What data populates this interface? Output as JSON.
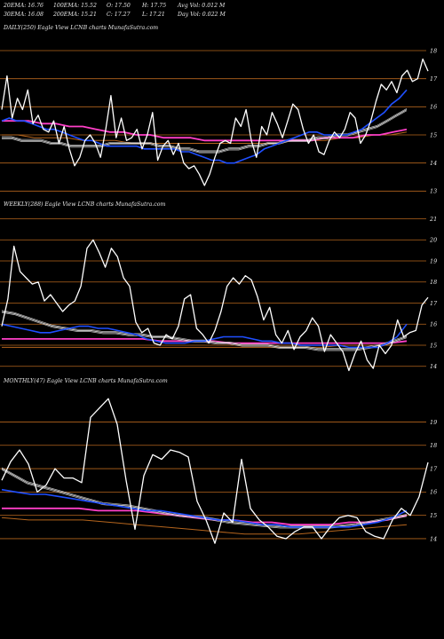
{
  "header": {
    "ema20": "20EMA: 16.76",
    "ema100": "100EMA: 15.52",
    "open": "O: 17.50",
    "high": "H: 17.75",
    "avg_vol": "Avg Vol: 0.012  M",
    "ema30": "30EMA: 16.08",
    "ema200": "200EMA: 15.21",
    "close": "C: 17.27",
    "low": "L: 17.21",
    "day_vol": "Day Vol: 0.022  M"
  },
  "colors": {
    "price": "#ffffff",
    "ema_fast": "#1f4fff",
    "ema_pink": "#ff3fc8",
    "ema_brown": "#b5651d",
    "grid": "#b5651d",
    "ma_grey": "#bfbfbf"
  },
  "chart_data": [
    {
      "type": "line",
      "title": "DAILY(250) Eagle  View  LCNB charts MunafaSutra.com",
      "yticks": [
        13,
        14,
        15,
        16,
        17,
        18
      ],
      "ylim": [
        12.6,
        18.6
      ],
      "series": [
        {
          "key": "price",
          "values": [
            15.9,
            17.1,
            15.6,
            16.3,
            15.9,
            16.6,
            15.4,
            15.7,
            15.2,
            15.1,
            15.5,
            14.7,
            15.3,
            14.5,
            13.9,
            14.2,
            14.8,
            15.0,
            14.7,
            14.2,
            15.2,
            16.4,
            14.9,
            15.6,
            14.8,
            14.9,
            15.2,
            14.5,
            15.0,
            15.8,
            14.1,
            14.6,
            14.8,
            14.3,
            14.7,
            14.0,
            13.8,
            13.9,
            13.6,
            13.2,
            13.6,
            14.2,
            14.7,
            14.8,
            14.7,
            15.6,
            15.3,
            15.9,
            14.8,
            14.2,
            15.3,
            15.0,
            15.8,
            15.4,
            14.9,
            15.5,
            16.1,
            15.9,
            15.2,
            14.7,
            15.0,
            14.4,
            14.3,
            14.8,
            15.1,
            14.9,
            15.2,
            15.8,
            15.6,
            14.7,
            15.0,
            15.5,
            16.2,
            16.8,
            16.6,
            16.9,
            16.5,
            17.1,
            17.3,
            16.9,
            17.0,
            17.7,
            17.27
          ]
        },
        {
          "key": "ema_fast",
          "values": [
            15.5,
            15.6,
            15.5,
            15.5,
            15.4,
            15.3,
            15.2,
            15.2,
            15.1,
            15.0,
            14.9,
            14.8,
            14.8,
            14.7,
            14.6,
            14.6,
            14.6,
            14.6,
            14.6,
            14.5,
            14.5,
            14.5,
            14.5,
            14.5,
            14.4,
            14.4,
            14.3,
            14.2,
            14.1,
            14.1,
            14.0,
            14.0,
            14.1,
            14.2,
            14.3,
            14.5,
            14.6,
            14.7,
            14.8,
            14.9,
            15.0,
            15.1,
            15.1,
            15.0,
            15.0,
            15.0,
            15.0,
            15.1,
            15.2,
            15.4,
            15.6,
            15.8,
            16.1,
            16.3,
            16.6
          ]
        },
        {
          "key": "ma_grey",
          "values": [
            14.9,
            14.9,
            14.8,
            14.8,
            14.8,
            14.7,
            14.7,
            14.6,
            14.6,
            14.6,
            14.6,
            14.7,
            14.7,
            14.7,
            14.7,
            14.7,
            14.6,
            14.6,
            14.5,
            14.5,
            14.4,
            14.4,
            14.4,
            14.5,
            14.5,
            14.6,
            14.6,
            14.7,
            14.7,
            14.8,
            14.8,
            14.8,
            14.9,
            14.9,
            15.0,
            15.0,
            15.1,
            15.2,
            15.3,
            15.5,
            15.7,
            15.9
          ]
        },
        {
          "key": "ema_pink",
          "values": [
            15.5,
            15.5,
            15.5,
            15.4,
            15.4,
            15.3,
            15.3,
            15.2,
            15.1,
            15.1,
            15.0,
            15.0,
            14.9,
            14.9,
            14.9,
            14.8,
            14.8,
            14.8,
            14.8,
            14.8,
            14.8,
            14.8,
            14.8,
            14.8,
            14.9,
            14.9,
            14.9,
            15.0,
            15.0,
            15.1,
            15.2
          ]
        },
        {
          "key": "ema_brown",
          "values": [
            15.0,
            15.0,
            14.9,
            14.9,
            14.9,
            14.8,
            14.8,
            14.8,
            14.7,
            14.7,
            14.7,
            14.7,
            14.7,
            14.7,
            14.7,
            14.7,
            14.7,
            14.7,
            14.8,
            14.8,
            14.8,
            14.9,
            14.9,
            15.0,
            15.0,
            15.1
          ]
        }
      ]
    },
    {
      "type": "line",
      "title": "WEEKLY(288) Eagle  View  LCNB charts MunafaSutra.com",
      "yticks": [
        14,
        15,
        16,
        17,
        18,
        19,
        20,
        21
      ],
      "ylim": [
        13.4,
        21.4
      ],
      "series": [
        {
          "key": "price",
          "values": [
            15.9,
            17.2,
            19.7,
            18.5,
            18.2,
            17.9,
            18.0,
            17.1,
            17.4,
            17.0,
            16.6,
            16.9,
            17.1,
            17.8,
            19.6,
            20.0,
            19.4,
            18.7,
            19.6,
            19.2,
            18.2,
            17.8,
            16.1,
            15.6,
            15.8,
            15.1,
            15.0,
            15.5,
            15.3,
            15.9,
            17.2,
            17.4,
            15.8,
            15.5,
            15.1,
            15.7,
            16.6,
            17.8,
            18.2,
            17.9,
            18.3,
            18.1,
            17.3,
            16.2,
            16.8,
            15.5,
            15.1,
            15.7,
            14.8,
            15.4,
            15.7,
            16.3,
            15.9,
            14.7,
            15.5,
            15.1,
            14.7,
            13.8,
            14.6,
            15.2,
            14.3,
            13.9,
            15.0,
            14.6,
            15.0,
            16.2,
            15.4,
            15.6,
            15.7,
            16.9,
            17.27
          ]
        },
        {
          "key": "ema_fast",
          "values": [
            16.0,
            15.9,
            15.8,
            15.7,
            15.6,
            15.6,
            15.7,
            15.8,
            15.9,
            15.9,
            15.8,
            15.8,
            15.7,
            15.6,
            15.5,
            15.3,
            15.2,
            15.1,
            15.1,
            15.1,
            15.2,
            15.2,
            15.3,
            15.4,
            15.4,
            15.4,
            15.3,
            15.2,
            15.2,
            15.1,
            15.1,
            15.0,
            15.0,
            15.0,
            15.0,
            15.0,
            14.9,
            14.9,
            14.9,
            14.9,
            15.1,
            15.4,
            16.0
          ]
        },
        {
          "key": "ma_grey",
          "values": [
            16.6,
            16.5,
            16.3,
            16.1,
            15.9,
            15.8,
            15.7,
            15.7,
            15.6,
            15.6,
            15.5,
            15.5,
            15.4,
            15.4,
            15.3,
            15.2,
            15.2,
            15.1,
            15.1,
            15.0,
            15.0,
            15.0,
            14.9,
            14.9,
            14.9,
            14.8,
            14.8,
            14.8,
            14.8,
            14.9,
            15.0,
            15.2,
            15.4
          ]
        },
        {
          "key": "ema_pink",
          "values": [
            15.3,
            15.3,
            15.3,
            15.3,
            15.3,
            15.3,
            15.3,
            15.3,
            15.3,
            15.2,
            15.2,
            15.2,
            15.2,
            15.1,
            15.1,
            15.1,
            15.1,
            15.1,
            15.1,
            15.1,
            15.1,
            15.1,
            15.1,
            15.2
          ]
        },
        {
          "key": "ema_brown",
          "values": [
            14.9,
            14.9,
            14.9,
            14.9,
            14.9,
            14.9,
            14.9,
            14.9,
            14.9,
            14.9,
            14.9,
            14.9,
            14.9,
            14.9,
            14.9,
            14.9,
            15.0,
            15.0,
            15.0,
            15.0
          ]
        }
      ]
    },
    {
      "type": "line",
      "title": "MONTHLY(47) Eagle  View  LCNB charts MunafaSutra.com",
      "yticks": [
        14,
        15,
        16,
        17,
        18,
        19
      ],
      "ylim": [
        13.2,
        20.5
      ],
      "series": [
        {
          "key": "price",
          "values": [
            16.5,
            17.3,
            17.8,
            17.2,
            16.0,
            16.3,
            17.0,
            16.6,
            16.6,
            16.4,
            19.2,
            19.6,
            20.0,
            18.9,
            16.5,
            14.4,
            16.7,
            17.6,
            17.4,
            17.8,
            17.7,
            17.5,
            15.6,
            14.8,
            13.8,
            15.1,
            14.7,
            17.4,
            15.3,
            14.8,
            14.5,
            14.1,
            14.0,
            14.3,
            14.5,
            14.5,
            14.0,
            14.5,
            14.9,
            15.0,
            14.9,
            14.3,
            14.1,
            14.0,
            14.8,
            15.3,
            15.0,
            15.8,
            17.27
          ]
        },
        {
          "key": "ema_fast",
          "values": [
            16.1,
            16.0,
            15.9,
            15.9,
            15.8,
            15.7,
            15.6,
            15.5,
            15.4,
            15.3,
            15.2,
            15.2,
            15.1,
            15.0,
            14.9,
            14.8,
            14.8,
            14.7,
            14.6,
            14.6,
            14.5,
            14.5,
            14.5,
            14.5,
            14.5,
            14.6,
            14.7,
            14.9,
            15.2
          ]
        },
        {
          "key": "ma_grey",
          "values": [
            17.0,
            16.4,
            16.1,
            15.8,
            15.5,
            15.4,
            15.2,
            15.0,
            14.9,
            14.7,
            14.6,
            14.5,
            14.5,
            14.5,
            14.6,
            14.8,
            15.0
          ]
        },
        {
          "key": "ema_pink",
          "values": [
            15.3,
            15.3,
            15.3,
            15.3,
            15.3,
            15.2,
            15.2,
            15.2,
            15.1,
            15.0,
            14.9,
            14.8,
            14.8,
            14.7,
            14.7,
            14.6,
            14.6,
            14.6,
            14.7,
            14.7,
            14.8,
            15.0
          ]
        },
        {
          "key": "ema_brown",
          "values": [
            14.9,
            14.8,
            14.8,
            14.8,
            14.7,
            14.6,
            14.5,
            14.4,
            14.3,
            14.2,
            14.2,
            14.2,
            14.3,
            14.4,
            14.5,
            14.6
          ]
        }
      ]
    }
  ]
}
